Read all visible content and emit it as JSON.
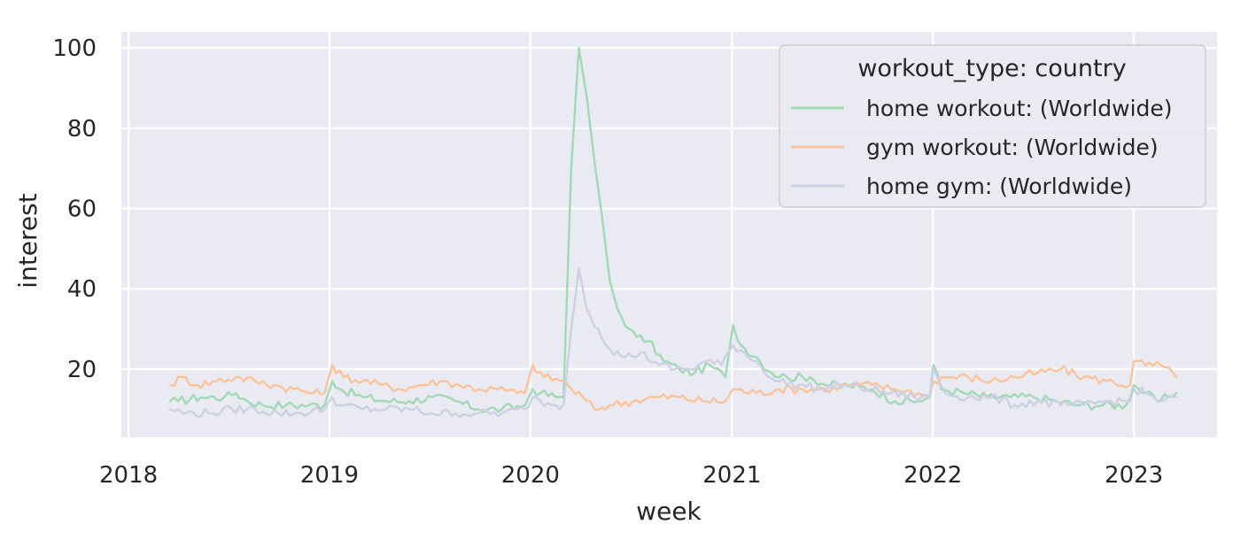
{
  "chart_data": {
    "type": "line",
    "xlabel": "week",
    "ylabel": "interest",
    "xlim": [
      "2017-12-19",
      "2023-06-01"
    ],
    "ylim": [
      3,
      104
    ],
    "x_ticks": [
      "2018",
      "2019",
      "2020",
      "2021",
      "2022",
      "2023"
    ],
    "y_ticks": [
      20,
      40,
      60,
      80,
      100
    ],
    "grid": true,
    "legend": {
      "title": "workout_type: country",
      "placement": "top-right"
    },
    "series": [
      {
        "name": "home workout: (Worldwide)",
        "color": "#a1d9b4",
        "points": [
          [
            "2018-03-18",
            12
          ],
          [
            "2018-04-01",
            12
          ],
          [
            "2018-05-13",
            13
          ],
          [
            "2018-06-24",
            13
          ],
          [
            "2018-07-15",
            14
          ],
          [
            "2018-08-05",
            12
          ],
          [
            "2018-09-02",
            11
          ],
          [
            "2018-10-14",
            11
          ],
          [
            "2018-11-25",
            11
          ],
          [
            "2018-12-23",
            11
          ],
          [
            "2018-12-30",
            14
          ],
          [
            "2019-01-06",
            17
          ],
          [
            "2019-01-20",
            15
          ],
          [
            "2019-03-03",
            13
          ],
          [
            "2019-04-14",
            12
          ],
          [
            "2019-05-26",
            12
          ],
          [
            "2019-07-07",
            13
          ],
          [
            "2019-08-18",
            12
          ],
          [
            "2019-09-29",
            10
          ],
          [
            "2019-11-10",
            10
          ],
          [
            "2019-12-22",
            11
          ],
          [
            "2019-12-29",
            13
          ],
          [
            "2020-01-05",
            15
          ],
          [
            "2020-01-19",
            14
          ],
          [
            "2020-02-16",
            13
          ],
          [
            "2020-03-01",
            13
          ],
          [
            "2020-03-15",
            70
          ],
          [
            "2020-03-29",
            100
          ],
          [
            "2020-04-12",
            88
          ],
          [
            "2020-04-26",
            72
          ],
          [
            "2020-05-10",
            58
          ],
          [
            "2020-05-24",
            42
          ],
          [
            "2020-06-07",
            35
          ],
          [
            "2020-06-28",
            30
          ],
          [
            "2020-07-12",
            28
          ],
          [
            "2020-08-02",
            27
          ],
          [
            "2020-08-30",
            22
          ],
          [
            "2020-09-27",
            20
          ],
          [
            "2020-10-25",
            19
          ],
          [
            "2020-11-22",
            21
          ],
          [
            "2020-12-20",
            18
          ],
          [
            "2021-01-03",
            31
          ],
          [
            "2021-01-17",
            26
          ],
          [
            "2021-02-14",
            23
          ],
          [
            "2021-03-14",
            19
          ],
          [
            "2021-04-11",
            18
          ],
          [
            "2021-05-23",
            18
          ],
          [
            "2021-06-20",
            16
          ],
          [
            "2021-08-01",
            16
          ],
          [
            "2021-09-12",
            15
          ],
          [
            "2021-10-24",
            12
          ],
          [
            "2021-12-05",
            12
          ],
          [
            "2021-12-26",
            13
          ],
          [
            "2022-01-02",
            21
          ],
          [
            "2022-01-16",
            15
          ],
          [
            "2022-02-27",
            14
          ],
          [
            "2022-04-10",
            13
          ],
          [
            "2022-05-22",
            13
          ],
          [
            "2022-07-03",
            13
          ],
          [
            "2022-08-14",
            12
          ],
          [
            "2022-09-25",
            11
          ],
          [
            "2022-11-06",
            11
          ],
          [
            "2022-12-18",
            11
          ],
          [
            "2023-01-01",
            16
          ],
          [
            "2023-01-22",
            14
          ],
          [
            "2023-02-12",
            12
          ],
          [
            "2023-03-05",
            13
          ],
          [
            "2023-03-19",
            14
          ]
        ]
      },
      {
        "name": "gym workout: (Worldwide)",
        "color": "#fcc39a",
        "points": [
          [
            "2018-03-18",
            16
          ],
          [
            "2018-04-08",
            18
          ],
          [
            "2018-05-06",
            16
          ],
          [
            "2018-06-10",
            17
          ],
          [
            "2018-07-15",
            18
          ],
          [
            "2018-08-19",
            17
          ],
          [
            "2018-09-23",
            16
          ],
          [
            "2018-10-28",
            15
          ],
          [
            "2018-12-02",
            14
          ],
          [
            "2018-12-23",
            14
          ],
          [
            "2019-01-06",
            21
          ],
          [
            "2019-01-27",
            18
          ],
          [
            "2019-03-03",
            17
          ],
          [
            "2019-04-07",
            16
          ],
          [
            "2019-05-12",
            15
          ],
          [
            "2019-06-16",
            16
          ],
          [
            "2019-07-21",
            17
          ],
          [
            "2019-08-25",
            16
          ],
          [
            "2019-09-29",
            15
          ],
          [
            "2019-11-03",
            15
          ],
          [
            "2019-12-08",
            14
          ],
          [
            "2019-12-22",
            14
          ],
          [
            "2020-01-05",
            21
          ],
          [
            "2020-01-26",
            18
          ],
          [
            "2020-03-01",
            17
          ],
          [
            "2020-03-15",
            15
          ],
          [
            "2020-04-05",
            13
          ],
          [
            "2020-04-26",
            10
          ],
          [
            "2020-05-24",
            11
          ],
          [
            "2020-07-05",
            12
          ],
          [
            "2020-08-16",
            13
          ],
          [
            "2020-09-27",
            13
          ],
          [
            "2020-11-08",
            12
          ],
          [
            "2020-12-20",
            12
          ],
          [
            "2021-01-03",
            15
          ],
          [
            "2021-02-14",
            14
          ],
          [
            "2021-03-28",
            15
          ],
          [
            "2021-05-09",
            15
          ],
          [
            "2021-06-20",
            15
          ],
          [
            "2021-08-01",
            16
          ],
          [
            "2021-09-12",
            16
          ],
          [
            "2021-10-24",
            15
          ],
          [
            "2021-12-05",
            14
          ],
          [
            "2021-12-26",
            13
          ],
          [
            "2022-01-02",
            17
          ],
          [
            "2022-01-23",
            18
          ],
          [
            "2022-03-06",
            18
          ],
          [
            "2022-04-17",
            17
          ],
          [
            "2022-05-29",
            18
          ],
          [
            "2022-07-10",
            19
          ],
          [
            "2022-08-21",
            20
          ],
          [
            "2022-10-02",
            18
          ],
          [
            "2022-11-13",
            17
          ],
          [
            "2022-12-25",
            16
          ],
          [
            "2023-01-01",
            22
          ],
          [
            "2023-01-22",
            21
          ],
          [
            "2023-02-19",
            21
          ],
          [
            "2023-03-19",
            18
          ]
        ]
      },
      {
        "name": "home gym: (Worldwide)",
        "color": "#cdd0e3",
        "points": [
          [
            "2018-03-18",
            10
          ],
          [
            "2018-04-15",
            9
          ],
          [
            "2018-05-27",
            9
          ],
          [
            "2018-07-08",
            10
          ],
          [
            "2018-08-19",
            10
          ],
          [
            "2018-09-30",
            9
          ],
          [
            "2018-11-11",
            9
          ],
          [
            "2018-12-23",
            10
          ],
          [
            "2019-01-06",
            13
          ],
          [
            "2019-01-20",
            11
          ],
          [
            "2019-03-03",
            10
          ],
          [
            "2019-04-14",
            10
          ],
          [
            "2019-05-26",
            10
          ],
          [
            "2019-07-07",
            9
          ],
          [
            "2019-08-18",
            9
          ],
          [
            "2019-09-29",
            9
          ],
          [
            "2019-11-10",
            9
          ],
          [
            "2019-12-22",
            10
          ],
          [
            "2020-01-05",
            13
          ],
          [
            "2020-01-19",
            12
          ],
          [
            "2020-02-16",
            11
          ],
          [
            "2020-03-01",
            11
          ],
          [
            "2020-03-15",
            30
          ],
          [
            "2020-03-29",
            45
          ],
          [
            "2020-04-12",
            35
          ],
          [
            "2020-05-03",
            30
          ],
          [
            "2020-05-24",
            25
          ],
          [
            "2020-06-21",
            23
          ],
          [
            "2020-07-19",
            24
          ],
          [
            "2020-08-23",
            21
          ],
          [
            "2020-09-20",
            20
          ],
          [
            "2020-10-18",
            20
          ],
          [
            "2020-11-15",
            22
          ],
          [
            "2020-12-13",
            21
          ],
          [
            "2021-01-03",
            26
          ],
          [
            "2021-01-24",
            24
          ],
          [
            "2021-02-21",
            21
          ],
          [
            "2021-03-21",
            17
          ],
          [
            "2021-05-02",
            16
          ],
          [
            "2021-06-13",
            15
          ],
          [
            "2021-07-25",
            16
          ],
          [
            "2021-09-05",
            15
          ],
          [
            "2021-10-17",
            14
          ],
          [
            "2021-11-28",
            13
          ],
          [
            "2021-12-26",
            13
          ],
          [
            "2022-01-02",
            20
          ],
          [
            "2022-01-23",
            14
          ],
          [
            "2022-03-06",
            13
          ],
          [
            "2022-04-17",
            13
          ],
          [
            "2022-05-29",
            11
          ],
          [
            "2022-07-10",
            12
          ],
          [
            "2022-08-21",
            11
          ],
          [
            "2022-10-02",
            11
          ],
          [
            "2022-11-13",
            12
          ],
          [
            "2022-12-25",
            12
          ],
          [
            "2023-01-01",
            15
          ],
          [
            "2023-01-22",
            14
          ],
          [
            "2023-02-19",
            12
          ],
          [
            "2023-03-19",
            13
          ]
        ]
      }
    ]
  }
}
